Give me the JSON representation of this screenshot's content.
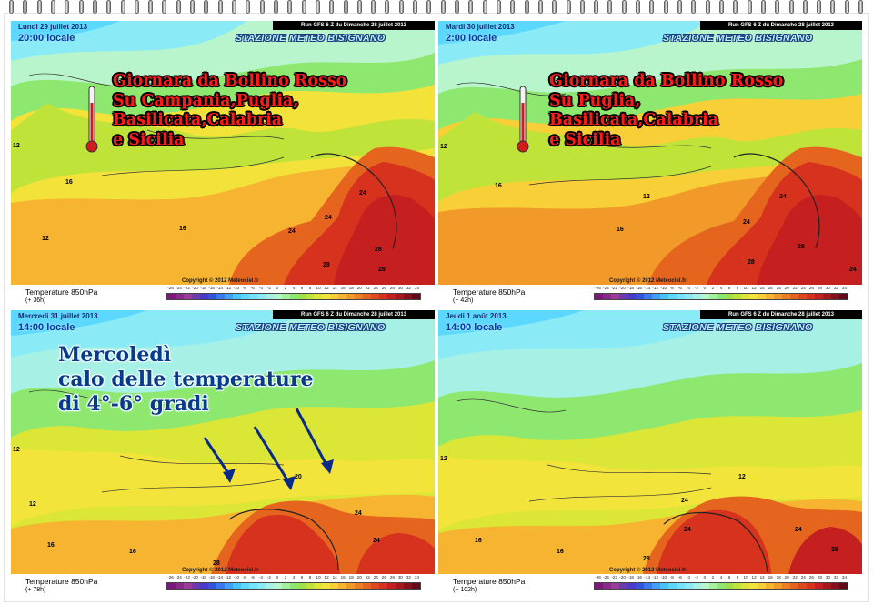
{
  "run_label": "Run GFS 6 Z du Dimanche 28 juillet 2013",
  "station_name": "STAZIONE METEO BISIGNANO",
  "copyright": "Copyright © 2012 Meteociel.fr",
  "legend_title": "Temperature 850hPa",
  "scale_ticks": [
    "-26",
    "-24",
    "-22",
    "-20",
    "-18",
    "-16",
    "-14",
    "-12",
    "-10",
    "-8",
    "-6",
    "-4",
    "-2",
    "0",
    "2",
    "4",
    "6",
    "8",
    "10",
    "12",
    "14",
    "16",
    "18",
    "20",
    "22",
    "24",
    "26",
    "28",
    "30",
    "32",
    "34"
  ],
  "scale_colors": [
    "#7a1a7a",
    "#8a2b8a",
    "#9a3d9a",
    "#6a3ab0",
    "#4a3acb",
    "#3355dd",
    "#3a7aee",
    "#3fa0f5",
    "#48c2fb",
    "#5cd8ff",
    "#73e3ff",
    "#8aebf6",
    "#a6f0e6",
    "#b8f5cc",
    "#a5f09a",
    "#8ee870",
    "#9de14e",
    "#c0e33a",
    "#dbe637",
    "#f2e43a",
    "#f8cf36",
    "#f6b430",
    "#f19a2a",
    "#ec7f24",
    "#e5651f",
    "#de4a1e",
    "#d6321e",
    "#c61f20",
    "#a8161f",
    "#86101c",
    "#620b18"
  ],
  "panels": [
    {
      "date": "Lundi 29 juillet 2013",
      "local_time": "20:00 locale",
      "forecast_hour": "(+ 36h)",
      "overlay_text": [
        "Giornara da Bollino Rosso",
        "Su Campania,Puglia,",
        "Basilicata,Calabria",
        "e Sicilia"
      ],
      "contour_labels": [
        "24",
        "24",
        "24",
        "28",
        "28",
        "28",
        "16",
        "12",
        "16",
        "12"
      ]
    },
    {
      "date": "Mardi 30 juillet 2013",
      "local_time": "2:00 locale",
      "forecast_hour": "(+ 42h)",
      "overlay_text": [
        "Giornara da Bollino Rosso",
        "Su Puglia,",
        "Basilicata,Calabria",
        "e Sicilia"
      ],
      "contour_labels": [
        "24",
        "24",
        "28",
        "28",
        "24",
        "16",
        "12",
        "12",
        "16"
      ]
    },
    {
      "date": "Mercredi 31 juillet 2013",
      "local_time": "14:00 locale",
      "forecast_hour": "(+ 78h)",
      "overlay_text": [
        "Mercoledì",
        "calo delle temperature",
        "di 4°-6° gradi"
      ],
      "contour_labels": [
        "20",
        "24",
        "24",
        "28",
        "16",
        "16",
        "12",
        "12"
      ]
    },
    {
      "date": "Jeudi 1 août 2013",
      "local_time": "14:00 locale",
      "forecast_hour": "(+ 102h)",
      "overlay_text": [],
      "contour_labels": [
        "24",
        "24",
        "24",
        "28",
        "28",
        "16",
        "12",
        "12",
        "16"
      ]
    }
  ]
}
